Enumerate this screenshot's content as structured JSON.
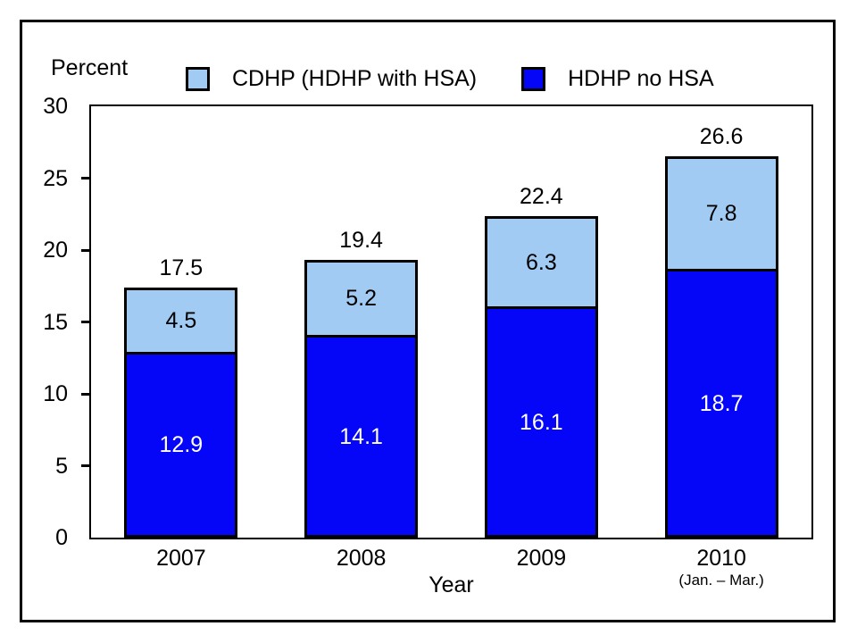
{
  "chart_data": {
    "type": "bar",
    "stacked": true,
    "ylabel": "Percent",
    "xlabel": "Year",
    "categories": [
      "2007",
      "2008",
      "2009",
      "2010"
    ],
    "category_sublabels": [
      "",
      "",
      "",
      "(Jan. – Mar.)"
    ],
    "series": [
      {
        "name": "HDHP no HSA",
        "color": "#0505f8",
        "label_color": "#ffffff",
        "values": [
          12.9,
          14.1,
          16.1,
          18.7
        ]
      },
      {
        "name": "CDHP (HDHP with HSA)",
        "color": "#a1cbf2",
        "label_color": "#000000",
        "values": [
          4.5,
          5.2,
          6.3,
          7.8
        ]
      }
    ],
    "totals": [
      17.5,
      19.4,
      22.4,
      26.6
    ],
    "ylim": [
      0,
      30
    ],
    "yticks": [
      0,
      5,
      10,
      15,
      20,
      25,
      30
    ],
    "grid": false,
    "legend_position": "top"
  },
  "legend": {
    "items": [
      {
        "label": "CDHP (HDHP with HSA)",
        "color": "#a1cbf2"
      },
      {
        "label": "HDHP no HSA",
        "color": "#0505f8"
      }
    ]
  },
  "colors": {
    "frame": "#000000",
    "background": "#ffffff"
  }
}
